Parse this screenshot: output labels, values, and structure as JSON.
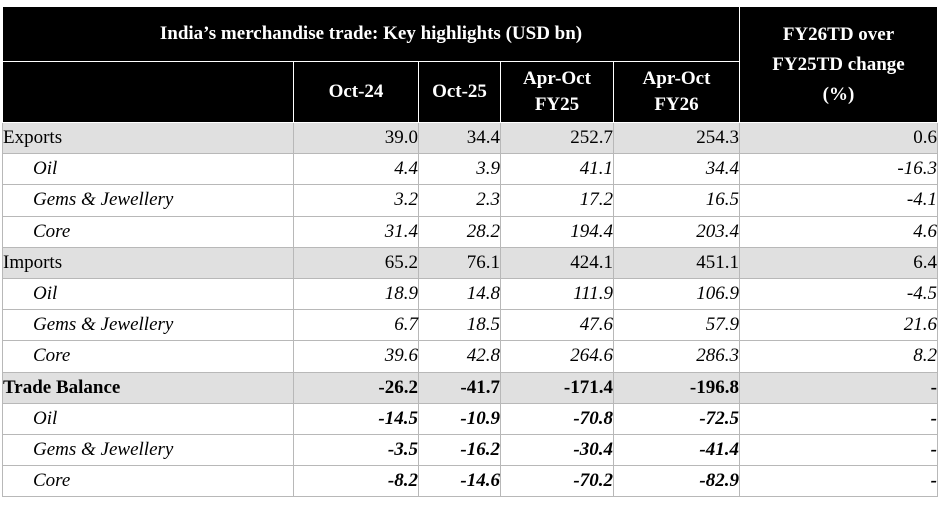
{
  "table": {
    "title": "India’s merchandise trade: Key highlights (USD bn)",
    "change_header_lines": [
      "FY26TD over",
      "FY25TD change",
      "(%)"
    ],
    "columns": [
      {
        "lines": [
          "Oct-24"
        ]
      },
      {
        "lines": [
          "Oct-25"
        ]
      },
      {
        "lines": [
          "Apr-Oct",
          "FY25"
        ]
      },
      {
        "lines": [
          "Apr-Oct",
          "FY26"
        ]
      }
    ],
    "rows": [
      {
        "label": "Exports",
        "values": [
          "39.0",
          "34.4",
          "252.7",
          "254.3",
          "0.6"
        ]
      },
      {
        "label": "Oil",
        "values": [
          "4.4",
          "3.9",
          "41.1",
          "34.4",
          "-16.3"
        ]
      },
      {
        "label": "Gems & Jewellery",
        "values": [
          "3.2",
          "2.3",
          "17.2",
          "16.5",
          "-4.1"
        ]
      },
      {
        "label": "Core",
        "values": [
          "31.4",
          "28.2",
          "194.4",
          "203.4",
          "4.6"
        ]
      },
      {
        "label": "Imports",
        "values": [
          "65.2",
          "76.1",
          "424.1",
          "451.1",
          "6.4"
        ]
      },
      {
        "label": "Oil",
        "values": [
          "18.9",
          "14.8",
          "111.9",
          "106.9",
          "-4.5"
        ]
      },
      {
        "label": "Gems & Jewellery",
        "values": [
          "6.7",
          "18.5",
          "47.6",
          "57.9",
          "21.6"
        ]
      },
      {
        "label": "Core",
        "values": [
          "39.6",
          "42.8",
          "264.6",
          "286.3",
          "8.2"
        ]
      },
      {
        "label": "Trade Balance",
        "values": [
          "-26.2",
          "-41.7",
          "-171.4",
          "-196.8",
          "-"
        ]
      },
      {
        "label": "Oil",
        "values": [
          "-14.5",
          "-10.9",
          "-70.8",
          "-72.5",
          "-"
        ]
      },
      {
        "label": "Gems & Jewellery",
        "values": [
          "-3.5",
          "-16.2",
          "-30.4",
          "-41.4",
          "-"
        ]
      },
      {
        "label": "Core",
        "values": [
          "-8.2",
          "-14.6",
          "-70.2",
          "-82.9",
          "-"
        ]
      }
    ]
  },
  "colors": {
    "header_background": "#000000",
    "header_text": "#ffffff",
    "main_row_background": "#e0e0e0",
    "sub_row_background": "#ffffff",
    "grid_line": "#b8b8b8"
  }
}
